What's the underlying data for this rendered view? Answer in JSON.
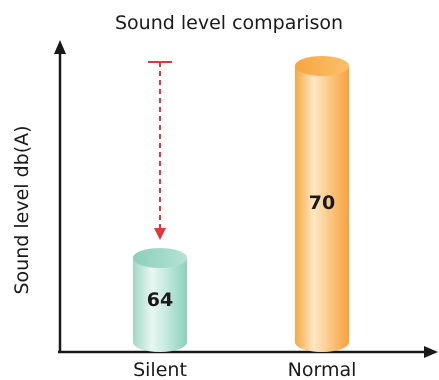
{
  "chart_data": {
    "type": "bar",
    "title": "Sound level comparison",
    "xlabel": "",
    "ylabel": "Sound level db(A)",
    "categories": [
      "Silent",
      "Normal"
    ],
    "values": [
      64,
      70
    ],
    "value_labels": [
      "64",
      "70"
    ],
    "colors": {
      "Silent": "#b6e2d6",
      "Normal": "#f9b25a",
      "arrow": "#d93a3a",
      "axis": "#1a1a1a"
    },
    "grid": false,
    "legend": "none",
    "annotations": [
      {
        "type": "dashed-arrow",
        "from_value": 70,
        "to_value": 64,
        "category": "Silent"
      }
    ]
  }
}
